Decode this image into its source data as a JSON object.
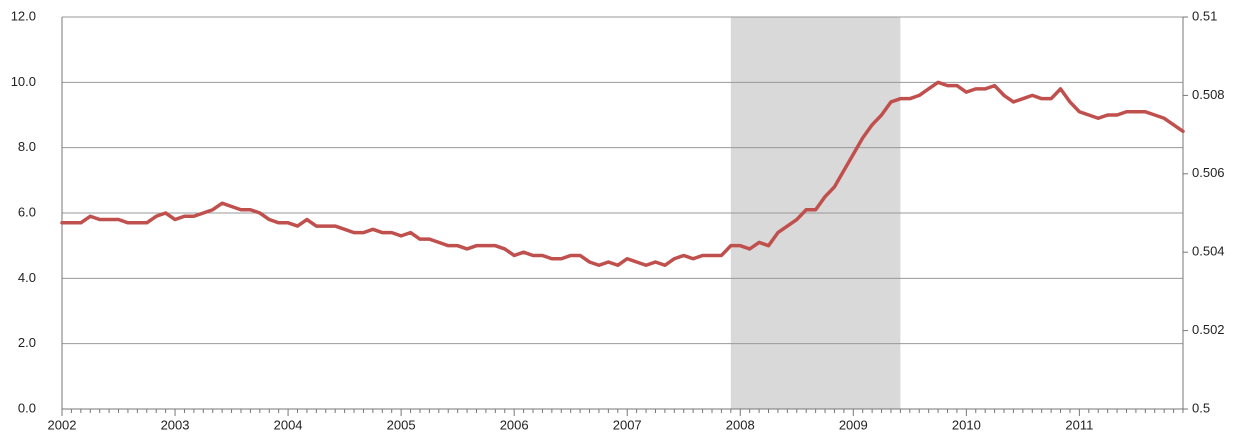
{
  "chart_data": {
    "type": "line",
    "categories": [
      "2002",
      null,
      null,
      null,
      null,
      null,
      null,
      null,
      null,
      null,
      null,
      null,
      "2003",
      null,
      null,
      null,
      null,
      null,
      null,
      null,
      null,
      null,
      null,
      null,
      "2004",
      null,
      null,
      null,
      null,
      null,
      null,
      null,
      null,
      null,
      null,
      null,
      "2005",
      null,
      null,
      null,
      null,
      null,
      null,
      null,
      null,
      null,
      null,
      null,
      "2006",
      null,
      null,
      null,
      null,
      null,
      null,
      null,
      null,
      null,
      null,
      null,
      "2007",
      null,
      null,
      null,
      null,
      null,
      null,
      null,
      null,
      null,
      null,
      null,
      "2008",
      null,
      null,
      null,
      null,
      null,
      null,
      null,
      null,
      null,
      null,
      null,
      "2009",
      null,
      null,
      null,
      null,
      null,
      null,
      null,
      null,
      null,
      null,
      null,
      "2010",
      null,
      null,
      null,
      null,
      null,
      null,
      null,
      null,
      null,
      null,
      null,
      "2011",
      null,
      null,
      null,
      null,
      null,
      null,
      null,
      null,
      null,
      null,
      null
    ],
    "series": [
      {
        "color": "#c0504d",
        "values": [
          5.7,
          5.7,
          5.7,
          5.9,
          5.8,
          5.8,
          5.8,
          5.7,
          5.7,
          5.7,
          5.9,
          6.0,
          5.8,
          5.9,
          5.9,
          6.0,
          6.1,
          6.3,
          6.2,
          6.1,
          6.1,
          6.0,
          5.8,
          5.7,
          5.7,
          5.6,
          5.8,
          5.6,
          5.6,
          5.6,
          5.5,
          5.4,
          5.4,
          5.5,
          5.4,
          5.4,
          5.3,
          5.4,
          5.2,
          5.2,
          5.1,
          5.0,
          5.0,
          4.9,
          5.0,
          5.0,
          5.0,
          4.9,
          4.7,
          4.8,
          4.7,
          4.7,
          4.6,
          4.6,
          4.7,
          4.7,
          4.5,
          4.4,
          4.5,
          4.4,
          4.6,
          4.5,
          4.4,
          4.5,
          4.4,
          4.6,
          4.7,
          4.6,
          4.7,
          4.7,
          4.7,
          5.0,
          5.0,
          4.9,
          5.1,
          5.0,
          5.4,
          5.6,
          5.8,
          6.1,
          6.1,
          6.5,
          6.8,
          7.3,
          7.8,
          8.3,
          8.7,
          9.0,
          9.4,
          9.5,
          9.5,
          9.6,
          9.8,
          10.0,
          9.9,
          9.9,
          9.7,
          9.8,
          9.8,
          9.9,
          9.6,
          9.4,
          9.5,
          9.6,
          9.5,
          9.5,
          9.8,
          9.4,
          9.1,
          9.0,
          8.9,
          9.0,
          9.0,
          9.1,
          9.1,
          9.1,
          9.0,
          8.9,
          8.7,
          8.5
        ]
      }
    ],
    "ylim": [
      0,
      12
    ],
    "yticks": [
      {
        "value": 0,
        "label": "0.0"
      },
      {
        "value": 2,
        "label": "2.0"
      },
      {
        "value": 4,
        "label": "4.0"
      },
      {
        "value": 6,
        "label": "6.0"
      },
      {
        "value": 8,
        "label": "8.0"
      },
      {
        "value": 10,
        "label": "10.0"
      },
      {
        "value": 12,
        "label": "12.0"
      }
    ],
    "y2lim": [
      0.5,
      0.51
    ],
    "y2ticks": [
      0.5,
      0.502,
      0.504,
      0.506,
      0.508,
      0.51
    ],
    "shaded_range": [
      71,
      89
    ],
    "shade_color": "#d9d9d9",
    "grid": true
  }
}
